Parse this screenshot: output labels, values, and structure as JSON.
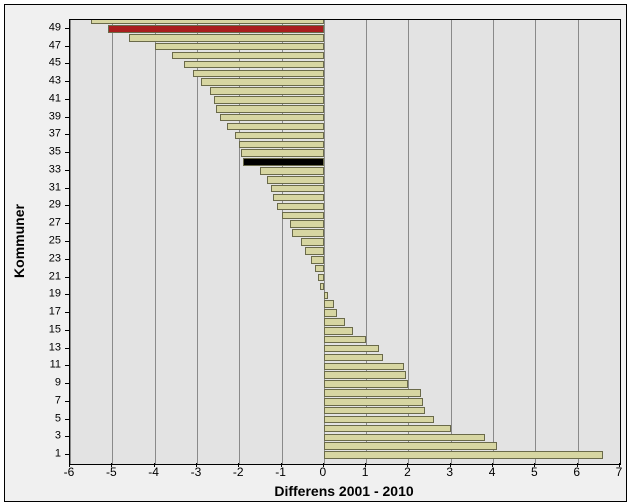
{
  "chart": {
    "type": "bar-horizontal",
    "plot_bg": "#e3e3e3",
    "frame_bg": "#f0f0f0",
    "grid_color": "#8a8a8a",
    "bar_default_color": "#d7d6a2",
    "bar_border_color": "#6a6a4a",
    "x_title": "Differens 2001 - 2010",
    "y_title": "Kommuner",
    "title_fontsize": 14,
    "label_fontsize": 12,
    "y_label_fontsize": 11,
    "xlim": [
      -6,
      7
    ],
    "x_ticks": [
      -6,
      -5,
      -4,
      -3,
      -2,
      -1,
      0,
      1,
      2,
      3,
      4,
      5,
      6,
      7
    ],
    "y_ticks": [
      1,
      3,
      5,
      7,
      9,
      11,
      13,
      15,
      17,
      19,
      21,
      23,
      25,
      27,
      29,
      31,
      33,
      35,
      37,
      39,
      41,
      43,
      45,
      47,
      49
    ],
    "y_range": [
      0,
      50
    ],
    "bars": [
      {
        "y": 1,
        "v": 6.6,
        "color": "#d7d6a2"
      },
      {
        "y": 2,
        "v": 4.1,
        "color": "#d7d6a2"
      },
      {
        "y": 3,
        "v": 3.8,
        "color": "#d7d6a2"
      },
      {
        "y": 4,
        "v": 3.0,
        "color": "#d7d6a2"
      },
      {
        "y": 5,
        "v": 2.6,
        "color": "#d7d6a2"
      },
      {
        "y": 6,
        "v": 2.4,
        "color": "#d7d6a2"
      },
      {
        "y": 7,
        "v": 2.35,
        "color": "#d7d6a2"
      },
      {
        "y": 8,
        "v": 2.3,
        "color": "#d7d6a2"
      },
      {
        "y": 9,
        "v": 2.0,
        "color": "#d7d6a2"
      },
      {
        "y": 10,
        "v": 1.95,
        "color": "#d7d6a2"
      },
      {
        "y": 11,
        "v": 1.9,
        "color": "#d7d6a2"
      },
      {
        "y": 12,
        "v": 1.4,
        "color": "#d7d6a2"
      },
      {
        "y": 13,
        "v": 1.3,
        "color": "#d7d6a2"
      },
      {
        "y": 14,
        "v": 1.0,
        "color": "#d7d6a2"
      },
      {
        "y": 15,
        "v": 0.7,
        "color": "#d7d6a2"
      },
      {
        "y": 16,
        "v": 0.5,
        "color": "#d7d6a2"
      },
      {
        "y": 17,
        "v": 0.3,
        "color": "#d7d6a2"
      },
      {
        "y": 18,
        "v": 0.25,
        "color": "#d7d6a2"
      },
      {
        "y": 19,
        "v": 0.1,
        "color": "#d7d6a2"
      },
      {
        "y": 20,
        "v": -0.1,
        "color": "#d7d6a2"
      },
      {
        "y": 21,
        "v": -0.15,
        "color": "#d7d6a2"
      },
      {
        "y": 22,
        "v": -0.2,
        "color": "#d7d6a2"
      },
      {
        "y": 23,
        "v": -0.3,
        "color": "#d7d6a2"
      },
      {
        "y": 24,
        "v": -0.45,
        "color": "#d7d6a2"
      },
      {
        "y": 25,
        "v": -0.55,
        "color": "#d7d6a2"
      },
      {
        "y": 26,
        "v": -0.75,
        "color": "#d7d6a2"
      },
      {
        "y": 27,
        "v": -0.8,
        "color": "#d7d6a2"
      },
      {
        "y": 28,
        "v": -1.0,
        "color": "#d7d6a2"
      },
      {
        "y": 29,
        "v": -1.1,
        "color": "#d7d6a2"
      },
      {
        "y": 30,
        "v": -1.2,
        "color": "#d7d6a2"
      },
      {
        "y": 31,
        "v": -1.25,
        "color": "#d7d6a2"
      },
      {
        "y": 32,
        "v": -1.35,
        "color": "#d7d6a2"
      },
      {
        "y": 33,
        "v": -1.5,
        "color": "#d7d6a2"
      },
      {
        "y": 34,
        "v": -1.9,
        "color": "#000000"
      },
      {
        "y": 35,
        "v": -1.95,
        "color": "#d7d6a2"
      },
      {
        "y": 36,
        "v": -2.0,
        "color": "#d7d6a2"
      },
      {
        "y": 37,
        "v": -2.1,
        "color": "#d7d6a2"
      },
      {
        "y": 38,
        "v": -2.3,
        "color": "#d7d6a2"
      },
      {
        "y": 39,
        "v": -2.45,
        "color": "#d7d6a2"
      },
      {
        "y": 40,
        "v": -2.55,
        "color": "#d7d6a2"
      },
      {
        "y": 41,
        "v": -2.6,
        "color": "#d7d6a2"
      },
      {
        "y": 42,
        "v": -2.7,
        "color": "#d7d6a2"
      },
      {
        "y": 43,
        "v": -2.9,
        "color": "#d7d6a2"
      },
      {
        "y": 44,
        "v": -3.1,
        "color": "#d7d6a2"
      },
      {
        "y": 45,
        "v": -3.3,
        "color": "#d7d6a2"
      },
      {
        "y": 46,
        "v": -3.6,
        "color": "#d7d6a2"
      },
      {
        "y": 47,
        "v": -4.0,
        "color": "#d7d6a2"
      },
      {
        "y": 48,
        "v": -4.6,
        "color": "#d7d6a2"
      },
      {
        "y": 49,
        "v": -5.1,
        "color": "#a91e1e"
      },
      {
        "y": 50,
        "v": -5.5,
        "color": "#d7d6a2"
      }
    ]
  }
}
